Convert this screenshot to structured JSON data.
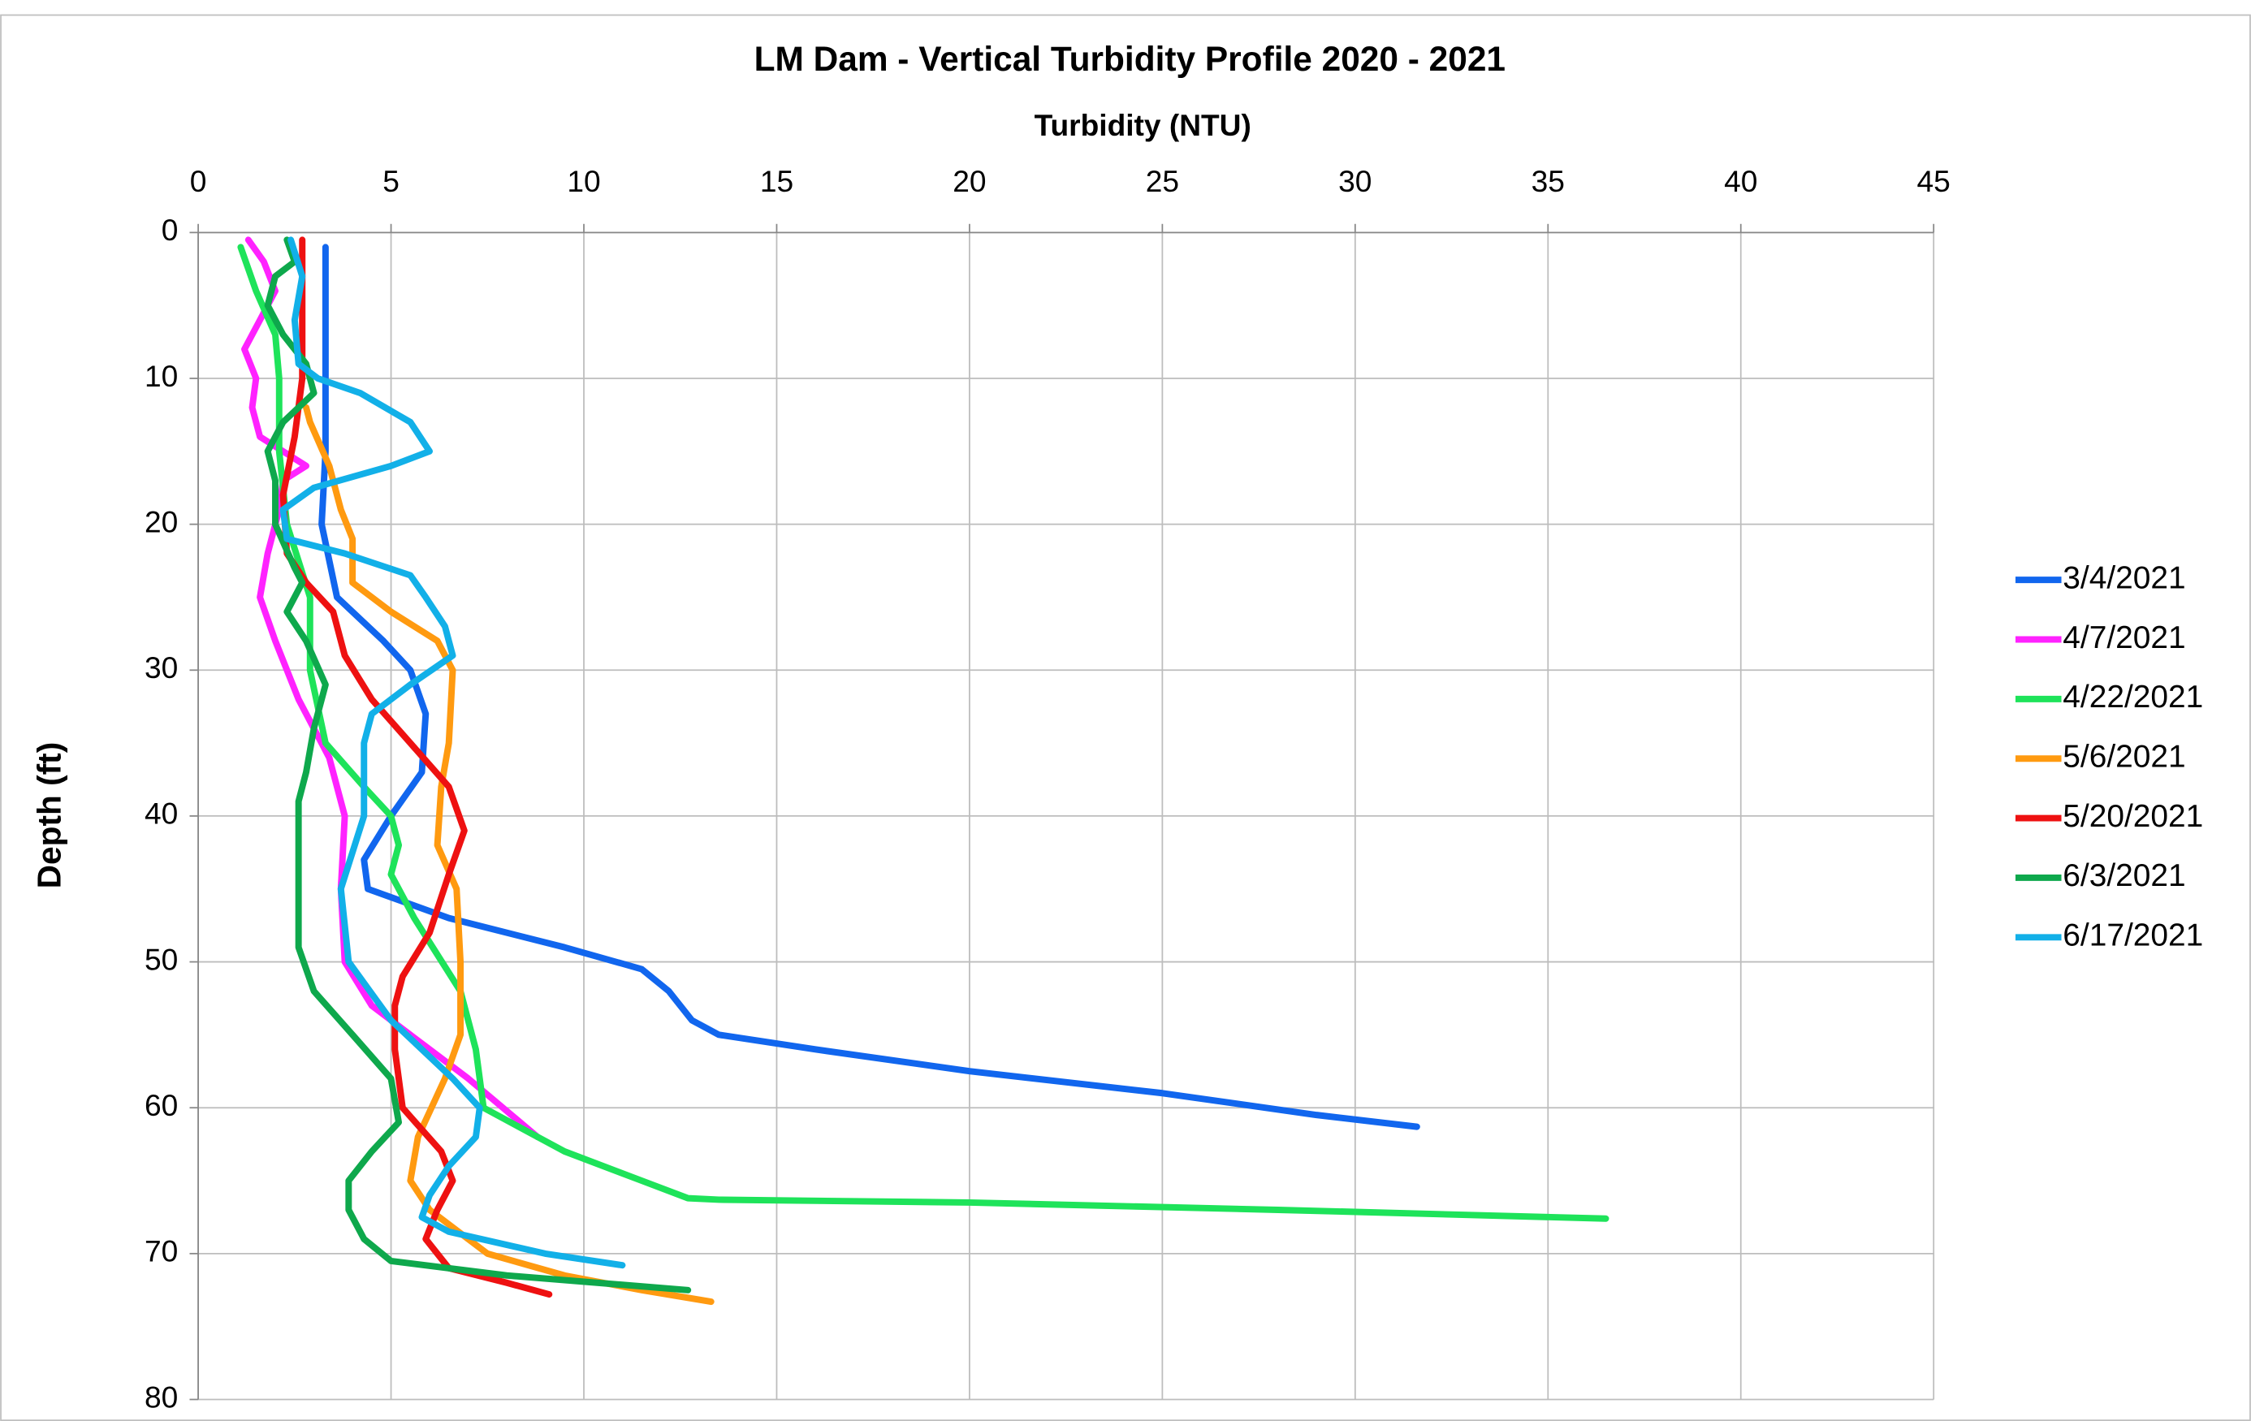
{
  "chart_data": {
    "type": "line",
    "title": "LM Dam - Vertical Turbidity Profile 2020 - 2021",
    "x_label": "Turbidity (NTU)",
    "y_label": "Depth (ft)",
    "xlim": [
      0,
      45
    ],
    "xticks": [
      0,
      5,
      10,
      15,
      20,
      25,
      30,
      35,
      40,
      45
    ],
    "ylim": [
      0,
      80
    ],
    "yticks": [
      0,
      10,
      20,
      30,
      40,
      50,
      60,
      70,
      80
    ],
    "y_inverted": true,
    "x_axis_position": "top",
    "grid": true,
    "legend": "right",
    "series": [
      {
        "name": "3/4/2021",
        "color": "#1166ee",
        "depth": [
          1,
          5,
          10,
          15,
          20,
          25,
          28,
          30,
          33,
          37,
          40,
          43,
          45,
          47,
          49,
          50.5,
          52,
          54,
          55,
          56,
          57.5,
          59,
          60.5,
          61.3
        ],
        "values": [
          3.3,
          3.3,
          3.3,
          3.3,
          3.2,
          3.6,
          4.8,
          5.5,
          5.9,
          5.8,
          5.0,
          4.3,
          4.4,
          6.5,
          9.5,
          11.5,
          12.2,
          12.8,
          13.5,
          16,
          20,
          25,
          29,
          31.6
        ]
      },
      {
        "name": "4/7/2021",
        "color": "#ff22ff",
        "depth": [
          0.5,
          2,
          4,
          6,
          8,
          10,
          12,
          14,
          16,
          17,
          19,
          22,
          25,
          28,
          32,
          36,
          40,
          45,
          50,
          53,
          56,
          58,
          62
        ],
        "values": [
          1.3,
          1.7,
          2.0,
          1.6,
          1.2,
          1.5,
          1.4,
          1.6,
          2.8,
          2.2,
          2.1,
          1.8,
          1.6,
          2.0,
          2.6,
          3.4,
          3.8,
          3.7,
          3.8,
          4.5,
          6.0,
          7.0,
          8.8
        ]
      },
      {
        "name": "4/22/2021",
        "color": "#1ee35a",
        "depth": [
          1,
          4,
          7,
          10,
          15,
          20,
          25,
          30,
          35,
          38,
          40,
          42,
          44,
          47,
          52,
          56,
          60,
          63,
          65,
          66.2,
          66.3,
          66.5,
          67,
          67.6
        ],
        "values": [
          1.1,
          1.5,
          2.0,
          2.1,
          2.1,
          2.3,
          2.9,
          2.9,
          3.3,
          4.3,
          5.0,
          5.2,
          5.0,
          5.6,
          6.8,
          7.2,
          7.4,
          9.5,
          11.5,
          12.7,
          13.5,
          20,
          28,
          36.5
        ]
      },
      {
        "name": "5/6/2021",
        "color": "#ff9a10",
        "depth": [
          12,
          13,
          16,
          19,
          21,
          24,
          26,
          28,
          30,
          35,
          38,
          42,
          45,
          50,
          55,
          58,
          62,
          65,
          67,
          70,
          71.5,
          72.5,
          73.3
        ],
        "values": [
          2.8,
          2.9,
          3.4,
          3.7,
          4.0,
          4.0,
          5.0,
          6.2,
          6.6,
          6.5,
          6.3,
          6.2,
          6.7,
          6.8,
          6.8,
          6.4,
          5.7,
          5.5,
          6.0,
          7.5,
          9.5,
          11.5,
          13.3
        ]
      },
      {
        "name": "5/20/2021",
        "color": "#ee1111",
        "depth": [
          0.5,
          5,
          10,
          14,
          18,
          22,
          24,
          26,
          29,
          32,
          35,
          38,
          41,
          44,
          48,
          51,
          53,
          56,
          60,
          63,
          65,
          67,
          69,
          71,
          72,
          72.8
        ],
        "values": [
          2.7,
          2.7,
          2.7,
          2.5,
          2.2,
          2.3,
          2.8,
          3.5,
          3.8,
          4.5,
          5.5,
          6.5,
          6.9,
          6.5,
          6.0,
          5.3,
          5.1,
          5.1,
          5.3,
          6.3,
          6.6,
          6.2,
          5.9,
          6.5,
          8.0,
          9.1
        ]
      },
      {
        "name": "6/3/2021",
        "color": "#0ea84c",
        "depth": [
          0.5,
          2,
          3,
          5,
          7,
          9,
          11,
          13,
          15,
          17,
          20,
          23,
          24,
          26,
          28,
          31,
          34,
          37,
          39,
          45,
          49,
          52,
          55,
          58,
          61,
          63,
          65,
          67,
          69,
          70.5,
          71.5,
          72.5
        ],
        "values": [
          2.3,
          2.5,
          2.0,
          1.8,
          2.2,
          2.8,
          3.0,
          2.2,
          1.8,
          2.0,
          2.0,
          2.5,
          2.7,
          2.3,
          2.8,
          3.3,
          3.0,
          2.8,
          2.6,
          2.6,
          2.6,
          3.0,
          4.0,
          5.0,
          5.2,
          4.5,
          3.9,
          3.9,
          4.3,
          5.0,
          8.0,
          12.7
        ]
      },
      {
        "name": "6/17/2021",
        "color": "#12b0e8",
        "depth": [
          0.5,
          3,
          6,
          9,
          10,
          11,
          13,
          15,
          16,
          17.5,
          19,
          21,
          22,
          23.5,
          25,
          27,
          29,
          31,
          33,
          35,
          40,
          45,
          50,
          54,
          58,
          60,
          62,
          64,
          66,
          67.5,
          68.5,
          70,
          70.8
        ],
        "values": [
          2.4,
          2.7,
          2.5,
          2.6,
          3.1,
          4.2,
          5.5,
          6.0,
          5.0,
          3.0,
          2.2,
          2.3,
          3.8,
          5.5,
          5.9,
          6.4,
          6.6,
          5.5,
          4.5,
          4.3,
          4.3,
          3.7,
          3.9,
          5.0,
          6.6,
          7.3,
          7.2,
          6.5,
          6.0,
          5.8,
          6.5,
          9.0,
          11.0
        ]
      }
    ]
  }
}
